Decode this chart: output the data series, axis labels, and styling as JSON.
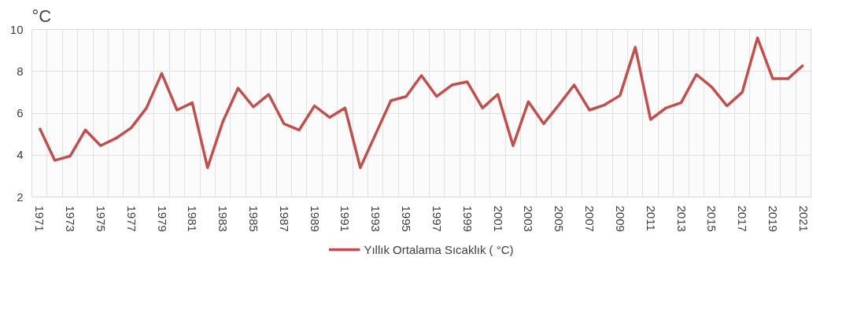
{
  "chart_data": {
    "type": "line",
    "ylabel": "°C",
    "categories": [
      "1971",
      null,
      "1973",
      null,
      "1975",
      null,
      "1977",
      null,
      "1979",
      null,
      "1981",
      null,
      "1983",
      null,
      "1985",
      null,
      "1987",
      null,
      "1989",
      null,
      "1991",
      null,
      "1993",
      null,
      "1995",
      null,
      "1997",
      null,
      "1999",
      null,
      "2001",
      null,
      "2003",
      null,
      "2005",
      null,
      "2007",
      null,
      "2009",
      null,
      "2011",
      null,
      "2013",
      null,
      "2015",
      null,
      "2017",
      null,
      "2019",
      null,
      "2021"
    ],
    "series": [
      {
        "name": "Yıllık Ortalama Sıcaklık ( °C)",
        "color": "#c0504d",
        "values": [
          5.3,
          3.75,
          3.95,
          5.2,
          4.45,
          4.8,
          5.3,
          6.25,
          7.9,
          6.15,
          6.5,
          3.4,
          5.6,
          7.2,
          6.3,
          6.9,
          5.5,
          5.2,
          6.35,
          5.8,
          6.25,
          3.4,
          5.0,
          6.6,
          6.8,
          7.8,
          6.8,
          7.35,
          7.5,
          6.25,
          6.9,
          4.45,
          6.55,
          5.5,
          6.4,
          7.35,
          6.15,
          6.4,
          6.85,
          9.15,
          5.7,
          6.25,
          6.5,
          7.85,
          7.25,
          6.35,
          7.0,
          9.6,
          7.65,
          7.65,
          8.3
        ]
      }
    ],
    "ylim": [
      2,
      10
    ],
    "yticks": [
      2,
      4,
      6,
      8,
      10
    ],
    "grid": true,
    "legend": "bottom",
    "line_style": "solid",
    "marker": "none"
  }
}
